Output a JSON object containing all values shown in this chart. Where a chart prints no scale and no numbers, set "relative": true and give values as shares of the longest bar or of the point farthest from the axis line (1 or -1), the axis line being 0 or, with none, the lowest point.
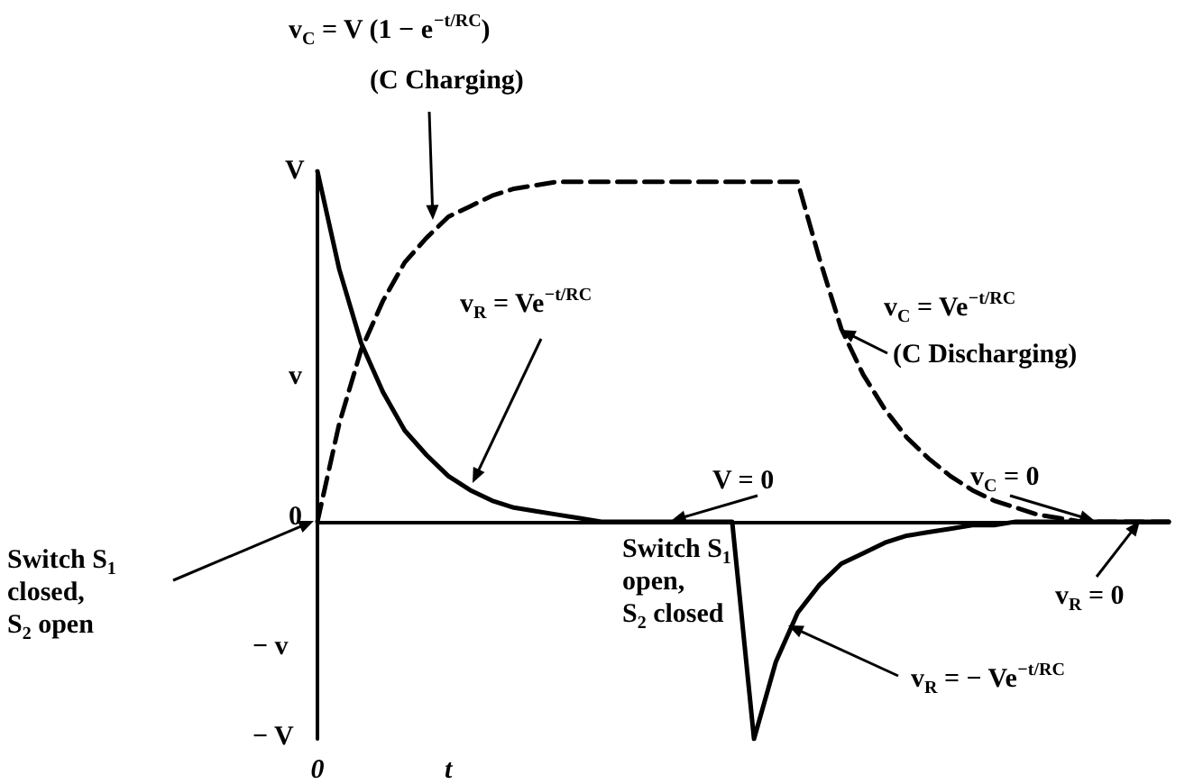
{
  "chart_data": {
    "type": "line",
    "relative": true,
    "marker": "none",
    "categories": [
      "0",
      null,
      null,
      null,
      null,
      null,
      "t",
      null,
      null,
      null,
      null,
      null,
      null,
      null,
      null,
      null,
      null,
      null,
      null,
      null,
      null,
      null,
      null,
      null,
      null,
      null,
      null,
      null,
      null,
      null,
      null,
      null,
      null,
      null,
      null,
      null,
      null,
      null,
      null,
      null
    ],
    "series": [
      {
        "line_style": "dashed",
        "color": "#000000",
        "values": [
          0,
          0.28,
          0.49,
          0.63,
          0.74,
          0.81,
          0.87,
          0.9,
          0.93,
          0.95,
          0.96,
          0.97,
          0.97,
          0.97,
          0.97,
          0.97,
          0.97,
          0.97,
          0.97,
          0.97,
          0.97,
          0.97,
          0.97,
          0.75,
          0.55,
          0.42,
          0.32,
          0.24,
          0.18,
          0.13,
          0.09,
          0.06,
          0.04,
          0.02,
          0.01,
          0,
          0,
          0,
          0,
          0
        ]
      },
      {
        "line_style": "solid",
        "color": "#000000",
        "values": [
          1,
          0.72,
          0.51,
          0.37,
          0.26,
          0.19,
          0.13,
          0.09,
          0.06,
          0.04,
          0.03,
          0.02,
          0.01,
          0,
          0,
          0,
          0,
          0,
          0,
          0,
          -0.62,
          -0.4,
          -0.26,
          -0.18,
          -0.12,
          -0.09,
          -0.06,
          -0.04,
          -0.03,
          -0.02,
          -0.01,
          -0.01,
          0,
          0,
          0,
          0,
          0,
          0,
          0,
          0
        ]
      }
    ],
    "annotations": [
      "v$_{C}$ = V (1 − e$^{−t/RC}$)",
      "(C Charging)",
      "v$_{R}$ = Ve$^{−t/RC}$",
      "V = 0",
      "v$_{C}$ = Ve$^{−t/RC}$",
      "(C Discharging)",
      "v$_{C}$ = 0",
      "v$_{R}$ = 0",
      "v$_{R}$ = − Ve$^{−t/RC}$",
      "Switch S$_{1}$\nclosed,\nS$_{2}$ open",
      "Switch S$_{1}$\nopen,\nS$_{2}$ closed",
      "V",
      "v",
      "0",
      "− v",
      "− V"
    ]
  }
}
